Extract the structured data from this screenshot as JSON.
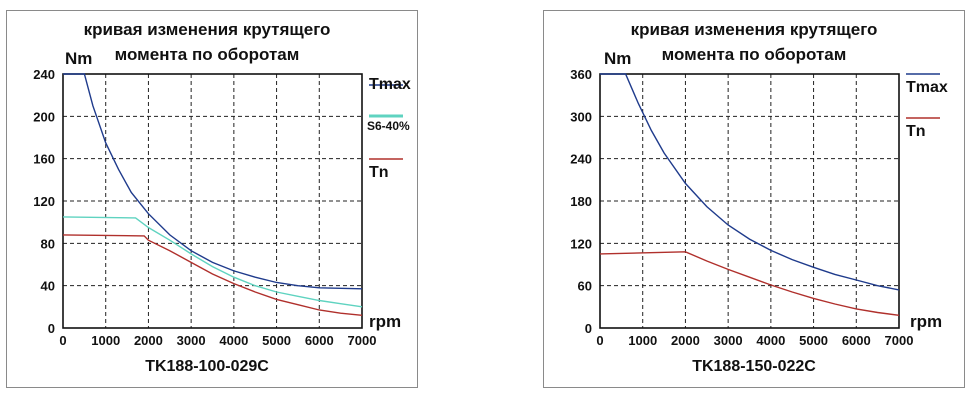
{
  "chart_data": [
    {
      "type": "line",
      "title": [
        "кривая изменения крутящего",
        "момента по оборотам"
      ],
      "ylabel": "Nm",
      "xlabel": "rpm",
      "model": "TK188-100-029C",
      "xlim": [
        0,
        7000
      ],
      "ylim": [
        0,
        240
      ],
      "xticks": [
        "0",
        "1000",
        "2000",
        "3000",
        "4000",
        "5000",
        "6000",
        "7000"
      ],
      "yticks": [
        "0",
        "40",
        "80",
        "120",
        "160",
        "200",
        "240"
      ],
      "grid": true,
      "legend": "right",
      "series": [
        {
          "name": "Tmax",
          "color": "#1f3b8c",
          "x": [
            0,
            500,
            700,
            1000,
            1300,
            1600,
            2000,
            2500,
            3000,
            3500,
            4000,
            4500,
            5000,
            5500,
            6000,
            7000
          ],
          "y": [
            240,
            240,
            210,
            175,
            150,
            128,
            108,
            88,
            73,
            62,
            54,
            48,
            43,
            40,
            38,
            37
          ]
        },
        {
          "name": "S6-40%",
          "color": "#5fd3c0",
          "x": [
            0,
            1700,
            2000,
            2500,
            3000,
            3500,
            4000,
            4500,
            5000,
            5500,
            6000,
            6500,
            7000
          ],
          "y": [
            105,
            104,
            95,
            83,
            70,
            58,
            48,
            40,
            34,
            30,
            26,
            23,
            20
          ]
        },
        {
          "name": "Tn",
          "color": "#b0302c",
          "x": [
            0,
            1900,
            2000,
            2500,
            3000,
            3500,
            4000,
            4500,
            5000,
            5500,
            6000,
            6500,
            7000
          ],
          "y": [
            88,
            87,
            83,
            73,
            62,
            51,
            42,
            34,
            27,
            22,
            17,
            14,
            12
          ]
        }
      ],
      "legend_labels": [
        {
          "text": "Tmax",
          "series": 0
        },
        {
          "text": "S6-40%",
          "series": 1
        },
        {
          "text": "Tn",
          "series": 2
        }
      ]
    },
    {
      "type": "line",
      "title": [
        "кривая изменения крутящего",
        "момента по оборотам"
      ],
      "ylabel": "Nm",
      "xlabel": "rpm",
      "model": "TK188-150-022C",
      "xlim": [
        0,
        7000
      ],
      "ylim": [
        0,
        360
      ],
      "xticks": [
        "0",
        "1000",
        "2000",
        "3000",
        "4000",
        "5000",
        "6000",
        "7000"
      ],
      "yticks": [
        "0",
        "60",
        "120",
        "180",
        "240",
        "300",
        "360"
      ],
      "grid": true,
      "legend": "right",
      "series": [
        {
          "name": "Tmax",
          "color": "#1f3b8c",
          "x": [
            0,
            600,
            900,
            1200,
            1500,
            2000,
            2500,
            3000,
            3500,
            4000,
            4500,
            5000,
            5500,
            6000,
            6500,
            7000
          ],
          "y": [
            360,
            360,
            318,
            280,
            248,
            205,
            172,
            146,
            126,
            110,
            97,
            86,
            76,
            68,
            60,
            54
          ]
        },
        {
          "name": "Tn",
          "color": "#b0302c",
          "x": [
            0,
            2000,
            2500,
            3000,
            3500,
            4000,
            4500,
            5000,
            5500,
            6000,
            6500,
            7000
          ],
          "y": [
            105,
            108,
            95,
            83,
            72,
            61,
            51,
            42,
            34,
            27,
            22,
            18
          ]
        }
      ],
      "legend_labels": [
        {
          "text": "Tmax",
          "series": 0
        },
        {
          "text": "Tn",
          "series": 1
        }
      ]
    }
  ]
}
